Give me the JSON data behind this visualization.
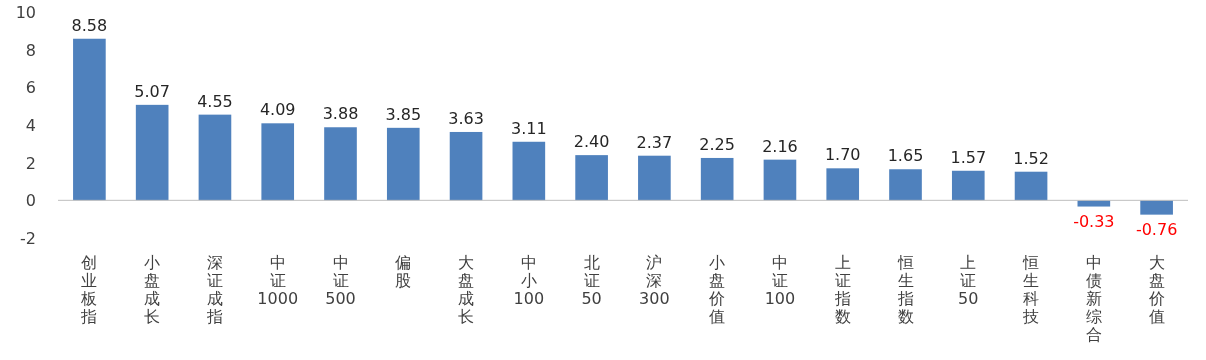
{
  "chart_data": {
    "type": "bar",
    "categories": [
      "创业板指",
      "小盘成长",
      "深证成指",
      "中证1000",
      "中证500",
      "偏股",
      "大盘成长",
      "中小100",
      "北证50",
      "沪深300",
      "小盘价值",
      "中证100",
      "上证指数",
      "恒生指数",
      "上证50",
      "恒生科技",
      "中债新综合",
      "大盘价值"
    ],
    "values": [
      8.58,
      5.07,
      4.55,
      4.09,
      3.88,
      3.85,
      3.63,
      3.11,
      2.4,
      2.37,
      2.25,
      2.16,
      1.7,
      1.65,
      1.57,
      1.52,
      -0.33,
      -0.76
    ],
    "value_labels": [
      "8.58",
      "5.07",
      "4.55",
      "4.09",
      "3.88",
      "3.85",
      "3.63",
      "3.11",
      "2.40",
      "2.37",
      "2.25",
      "2.16",
      "1.70",
      "1.65",
      "1.57",
      "1.52",
      "-0.33",
      "-0.76"
    ],
    "color": "#4f81bd",
    "ylim": [
      -2,
      10
    ],
    "yticks": [
      -2,
      0,
      2,
      4,
      6,
      8,
      10
    ],
    "ref_lines": [
      {
        "axis": "y",
        "value": 0,
        "color": "#bfbfbf"
      }
    ],
    "grid": false
  }
}
